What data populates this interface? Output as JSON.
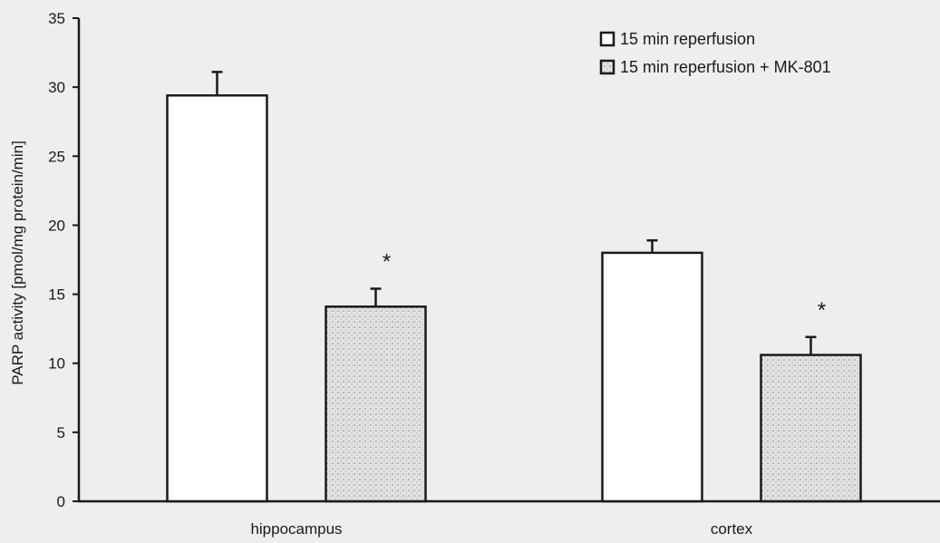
{
  "chart_data": {
    "type": "bar",
    "categories": [
      "hippocampus",
      "cortex"
    ],
    "series": [
      {
        "name": "15 min reperfusion",
        "values": [
          29.4,
          18.0
        ],
        "errors": [
          1.7,
          0.9
        ],
        "fill": "#ffffff"
      },
      {
        "name": "15 min reperfusion + MK-801",
        "values": [
          14.1,
          10.6
        ],
        "errors": [
          1.3,
          1.3
        ],
        "fill": "#dcdcdc"
      }
    ],
    "annotations": [
      "*",
      "*"
    ],
    "title": "",
    "xlabel": "",
    "ylabel": "PARP activity [pmol/mg protein/min]",
    "ylim": [
      0,
      35
    ],
    "yticks": [
      0,
      5,
      10,
      15,
      20,
      25,
      30,
      35
    ],
    "grid": false,
    "legend_position": "top-right",
    "colors": {
      "background": "#eeeeec",
      "ink": "#1a1a1a"
    }
  }
}
